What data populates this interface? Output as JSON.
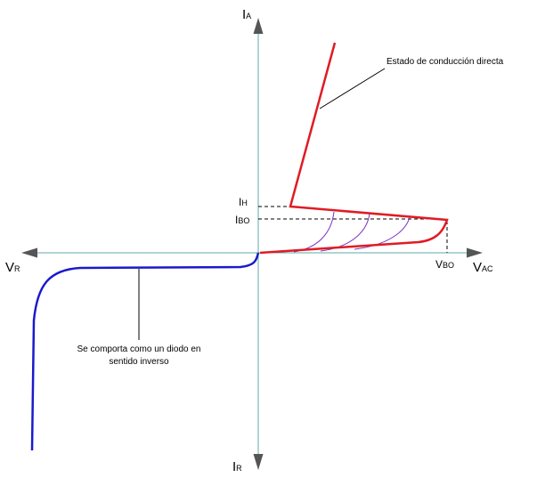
{
  "colors": {
    "axis": "#5fa8a8",
    "arrow": "#555555",
    "forward_curve": "#e01b24",
    "reverse_curve": "#1a1acc",
    "switching_curves": "#7b2fbf",
    "guide_lines": "#000000"
  },
  "axes": {
    "y_positive": {
      "main": "I",
      "sub": "A"
    },
    "y_negative": {
      "main": "I",
      "sub": "R"
    },
    "x_positive": {
      "main": "V",
      "sub": "AC"
    },
    "x_negative": {
      "main": "V",
      "sub": "R"
    }
  },
  "markers": {
    "holding_current": {
      "main": "I",
      "sub": "H"
    },
    "breakover_current": {
      "main": "I",
      "sub": "BO"
    },
    "breakover_voltage": {
      "main": "V",
      "sub": "BO"
    }
  },
  "annotations": {
    "forward_state": "Estado de conducción directa",
    "reverse_state_line1": "Se comporta como un diodo en",
    "reverse_state_line2": "sentido inverso"
  }
}
